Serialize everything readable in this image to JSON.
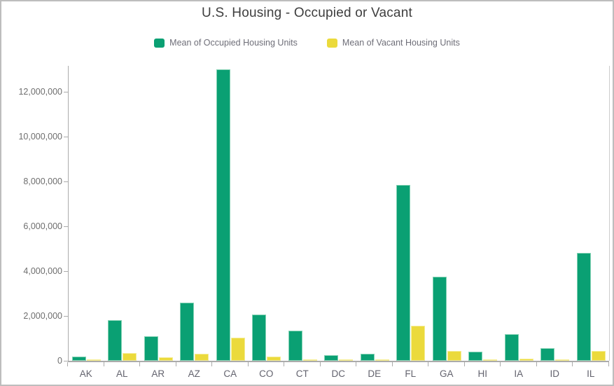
{
  "title": "U.S. Housing - Occupied or Vacant",
  "colors": {
    "occupied": "#0aa073",
    "occupied_edge": "#84d2b4",
    "vacant": "#ebda3c",
    "vacant_edge": "#f4ec94",
    "axis": "#ababab",
    "plot_boundary": "#cccccc",
    "tick_text": "#6e6e6e",
    "title_text": "#3e3e3e",
    "card_border": "#bdbdbd"
  },
  "chart_data": {
    "type": "bar",
    "title": "U.S. Housing - Occupied or Vacant",
    "xlabel": "",
    "ylabel": "",
    "categories": [
      "AK",
      "AL",
      "AR",
      "AZ",
      "CA",
      "CO",
      "CT",
      "DC",
      "DE",
      "FL",
      "GA",
      "HI",
      "IA",
      "ID",
      "IL"
    ],
    "series": [
      {
        "name": "Mean of Occupied Housing Units",
        "color": "#0aa073",
        "values": [
          200000,
          1800000,
          1100000,
          2580000,
          13000000,
          2070000,
          1350000,
          240000,
          300000,
          7850000,
          3760000,
          420000,
          1200000,
          560000,
          4800000
        ]
      },
      {
        "name": "Mean of Vacant Housing Units",
        "color": "#ebda3c",
        "values": [
          50000,
          330000,
          160000,
          320000,
          1030000,
          180000,
          70000,
          30000,
          50000,
          1550000,
          430000,
          50000,
          90000,
          40000,
          430000
        ]
      }
    ],
    "ylim": [
      0,
      13160000
    ],
    "y_ticks": [
      0,
      2000000,
      4000000,
      6000000,
      8000000,
      10000000,
      12000000
    ],
    "y_tick_labels": [
      "0",
      "2,000,000",
      "4,000,000",
      "6,000,000",
      "8,000,000",
      "10,000,000",
      "12,000,000"
    ],
    "grid": false,
    "legend_position": "top"
  }
}
